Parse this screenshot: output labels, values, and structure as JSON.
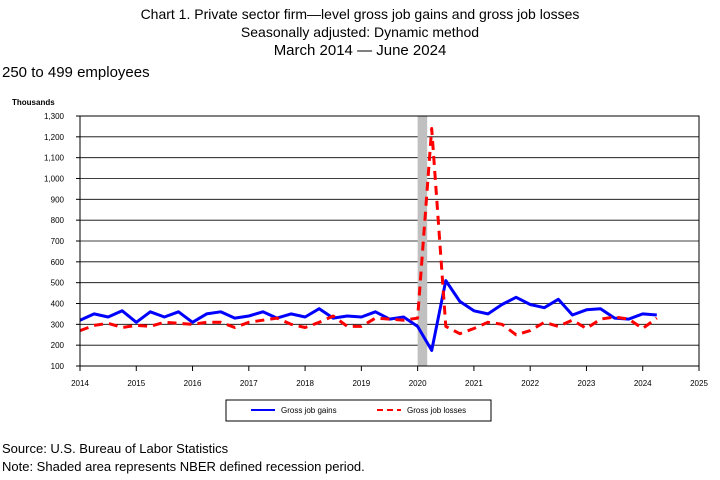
{
  "title": {
    "line1": "Chart 1. Private sector firm—level gross job gains and gross job losses",
    "line2": "Seasonally adjusted: Dynamic method",
    "line3": "March 2014  — June 2024"
  },
  "subtitle": "250 to 499 employees",
  "footer": {
    "source": "Source: U.S. Bureau of Labor Statistics",
    "note": "Note: Shaded area represents NBER defined recession period."
  },
  "colors": {
    "gains": "#0000ff",
    "losses": "#ff0000",
    "recession": "#c0c0c0"
  },
  "chart_data": {
    "type": "line",
    "ylabel": "Thousands",
    "xlim": [
      2014,
      2025
    ],
    "ylim": [
      100,
      1300
    ],
    "x_ticks": [
      "2014",
      "2015",
      "2016",
      "2017",
      "2018",
      "2019",
      "2020",
      "2021",
      "2022",
      "2023",
      "2024",
      "2025"
    ],
    "y_ticks": [
      "100",
      "200",
      "300",
      "400",
      "500",
      "600",
      "700",
      "800",
      "900",
      "1,000",
      "1,100",
      "1,200",
      "1,300"
    ],
    "grid": "horizontal",
    "legend_position": "bottom",
    "recession_shading": [
      2020.0,
      2020.17
    ],
    "x": [
      2014.0,
      2014.25,
      2014.5,
      2014.75,
      2015.0,
      2015.25,
      2015.5,
      2015.75,
      2016.0,
      2016.25,
      2016.5,
      2016.75,
      2017.0,
      2017.25,
      2017.5,
      2017.75,
      2018.0,
      2018.25,
      2018.5,
      2018.75,
      2019.0,
      2019.25,
      2019.5,
      2019.75,
      2020.0,
      2020.25,
      2020.5,
      2020.75,
      2021.0,
      2021.25,
      2021.5,
      2021.75,
      2022.0,
      2022.25,
      2022.5,
      2022.75,
      2023.0,
      2023.25,
      2023.5,
      2023.75,
      2024.0,
      2024.25
    ],
    "series": [
      {
        "name": "Gross job gains",
        "style": "solid",
        "values": [
          320,
          350,
          335,
          365,
          310,
          360,
          335,
          360,
          310,
          350,
          360,
          330,
          340,
          360,
          330,
          350,
          335,
          375,
          330,
          340,
          335,
          360,
          325,
          335,
          290,
          175,
          510,
          410,
          365,
          350,
          395,
          430,
          395,
          380,
          420,
          345,
          370,
          375,
          330,
          325,
          350,
          345
        ]
      },
      {
        "name": "Gross job losses",
        "style": "dashed",
        "values": [
          270,
          295,
          305,
          285,
          295,
          290,
          310,
          305,
          300,
          310,
          310,
          285,
          310,
          320,
          330,
          300,
          285,
          310,
          340,
          290,
          290,
          330,
          325,
          320,
          330,
          1240,
          290,
          255,
          280,
          310,
          300,
          250,
          270,
          310,
          290,
          320,
          280,
          325,
          335,
          325,
          280,
          330
        ]
      }
    ]
  }
}
